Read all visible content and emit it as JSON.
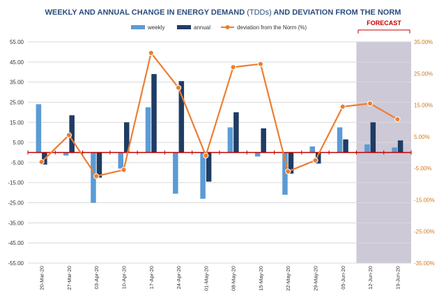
{
  "chart_data": {
    "type": "bar+line",
    "title": {
      "part1": "WEEKLY  AND ANNUAL CHANGE IN ENERGY DEMAND ",
      "part2": "(TDDs)",
      "part3": " AND DEVIATION FROM THE NORM"
    },
    "categories": [
      "20-Mar-20",
      "27-Mar-20",
      "03-Apr-20",
      "10-Apr-20",
      "17-Apr-20",
      "24-Apr-20",
      "01-May-20",
      "08-May-20",
      "15-May-20",
      "22-May-20",
      "29-May-20",
      "05-Jun-20",
      "12-Jun-20",
      "19-Jun-20"
    ],
    "series": [
      {
        "name": "weekly",
        "axis": "left",
        "values": [
          24.0,
          -1.5,
          -25.0,
          -8.0,
          22.5,
          -20.5,
          -23.0,
          12.5,
          -2.0,
          -21.0,
          3.0,
          12.5,
          4.0,
          2.5
        ]
      },
      {
        "name": "annual",
        "axis": "left",
        "values": [
          -6.0,
          18.5,
          -12.5,
          15.0,
          39.0,
          35.5,
          -14.5,
          20.0,
          12.0,
          -10.5,
          -5.5,
          6.5,
          15.0,
          6.0
        ]
      },
      {
        "name": "deviation from the Norm (%)",
        "axis": "right",
        "values": [
          -3.0,
          5.5,
          -7.5,
          -5.5,
          31.5,
          20.5,
          -1.0,
          27.0,
          28.0,
          -6.0,
          -2.5,
          14.5,
          15.5,
          10.5
        ]
      }
    ],
    "y_left": {
      "min": -55,
      "max": 55,
      "step": 10,
      "tick_labels": [
        "55.00",
        "45.00",
        "35.00",
        "25.00",
        "15.00",
        "5.00",
        "-5.00",
        "-15.00",
        "-25.00",
        "-35.00",
        "-45.00",
        "-55.00"
      ]
    },
    "y_right": {
      "min": -35,
      "max": 35,
      "step": 10,
      "tick_labels": [
        "35.00%",
        "25.00%",
        "15.00%",
        "5.00%",
        "-5.00%",
        "-15.00%",
        "-25.00%",
        "-35.00%"
      ]
    },
    "forecast": {
      "label": "FORECAST",
      "start_index": 12
    },
    "legend_position": "top-center",
    "grid": true,
    "colors": {
      "weekly": "#5b9bd5",
      "annual": "#1f3c64",
      "deviation": "#ed7d31",
      "zero_line": "#c00000",
      "forecast_shade": "#8b7fa0",
      "forecast_label": "#c00000",
      "title": "#2b4c7e",
      "right_axis": "#d0771e",
      "grid": "#d9d9d9"
    }
  }
}
